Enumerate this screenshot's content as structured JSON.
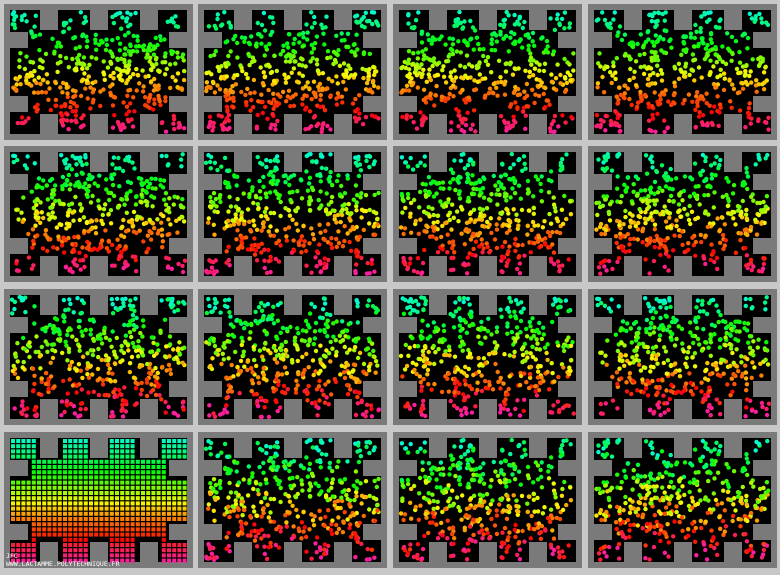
{
  "credit": {
    "author": "JFC",
    "url": "WWW.LACTAMME.POLYTECHNIQUE.FR"
  }
}
